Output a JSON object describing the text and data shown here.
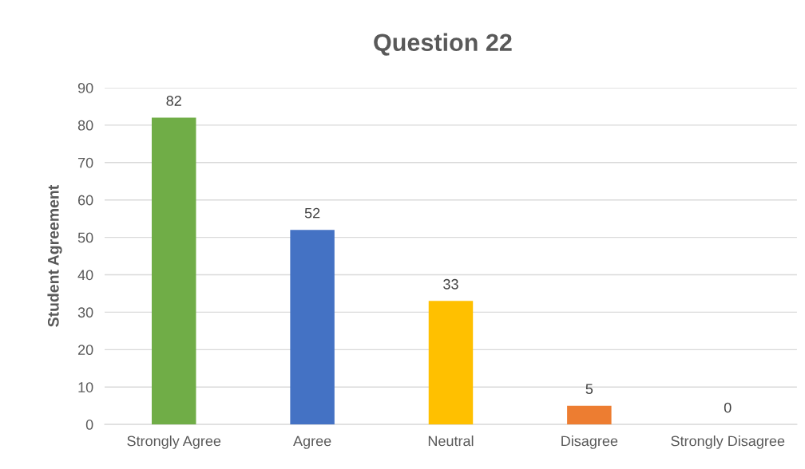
{
  "chart_data": {
    "type": "bar",
    "title": "Question 22",
    "ylabel": "Student Agreement",
    "categories": [
      "Strongly Agree",
      "Agree",
      "Neutral",
      "Disagree",
      "Strongly Disagree"
    ],
    "values": [
      82,
      52,
      33,
      5,
      0
    ],
    "colors": [
      "#70ad47",
      "#4472c4",
      "#ffc000",
      "#ed7d31",
      "#a5a5a5"
    ],
    "ylim": [
      0,
      90
    ],
    "yticks": [
      0,
      10,
      20,
      30,
      40,
      50,
      60,
      70,
      80,
      90
    ],
    "grid": "y",
    "data_labels": true
  }
}
